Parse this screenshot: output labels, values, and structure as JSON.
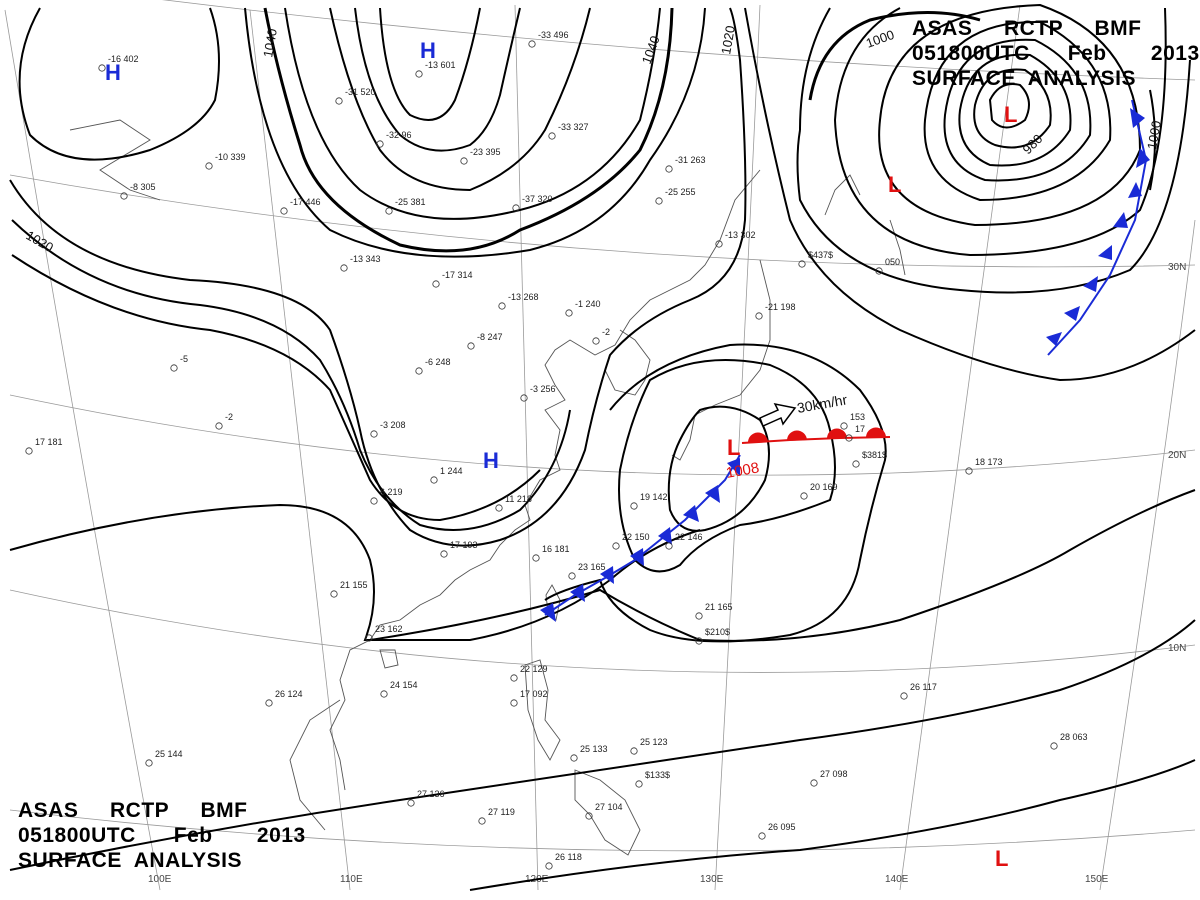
{
  "chart_title": {
    "line1": "ASAS     RCTP     BMF",
    "line2": "051800UTC      Feb       2013",
    "line3": "SURFACE  ANALYSIS"
  },
  "isobar_labels": {
    "p1040_west": "1040",
    "p1040_center": "1040",
    "p1020_northeast": "1020",
    "p1020_west": "1020",
    "p1000": "1000",
    "p1000_east": "1000",
    "p980": "980"
  },
  "systems": {
    "high_label": "H",
    "low_label": "L",
    "low_pressure": "1008",
    "motion": "30km/hr"
  },
  "colors": {
    "high": "#1a2bd6",
    "low": "#e01010",
    "cold_front": "#1a2bd6",
    "warm_front": "#e01010",
    "isobar": "#000000",
    "grid": "#999999"
  },
  "grid_labels": {
    "lat": [
      "30N",
      "20N",
      "10N"
    ],
    "lon": [
      "100E",
      "110E",
      "120E",
      "130E",
      "140E",
      "150E"
    ]
  },
  "station_obs": [
    "-16 402",
    "-13 601",
    "-33 496",
    "-31 520",
    "-32 96",
    "-10 339",
    "-8 305",
    "-17 446",
    "-25 381",
    "-23 395",
    "-33 327",
    "-37 320",
    "-31 263",
    "-25 255",
    "-13 343",
    "-17 314",
    "-13 268",
    "-1 240",
    "-2",
    "-8 247",
    "-6 248",
    "-3 256",
    "-13 302",
    "-21 198",
    "-5",
    "-2",
    "17 181",
    "-3 208",
    "1 244",
    "11 218",
    "6 219",
    "17 193",
    "16 181",
    "21 155",
    "23 162",
    "24 154",
    "26 124",
    "25 144",
    "27 136",
    "27 119",
    "26 118",
    "22 129",
    "17 092",
    "25 133",
    "25 123",
    "$133$",
    "27 104",
    "19 142",
    "22 146",
    "22 150",
    "23 165",
    "21 165",
    "$210$",
    "20 169",
    "18 173",
    "$381$",
    "153",
    "17",
    "26 117",
    "28 063",
    "27 098",
    "26 095",
    "050",
    "$437$"
  ]
}
